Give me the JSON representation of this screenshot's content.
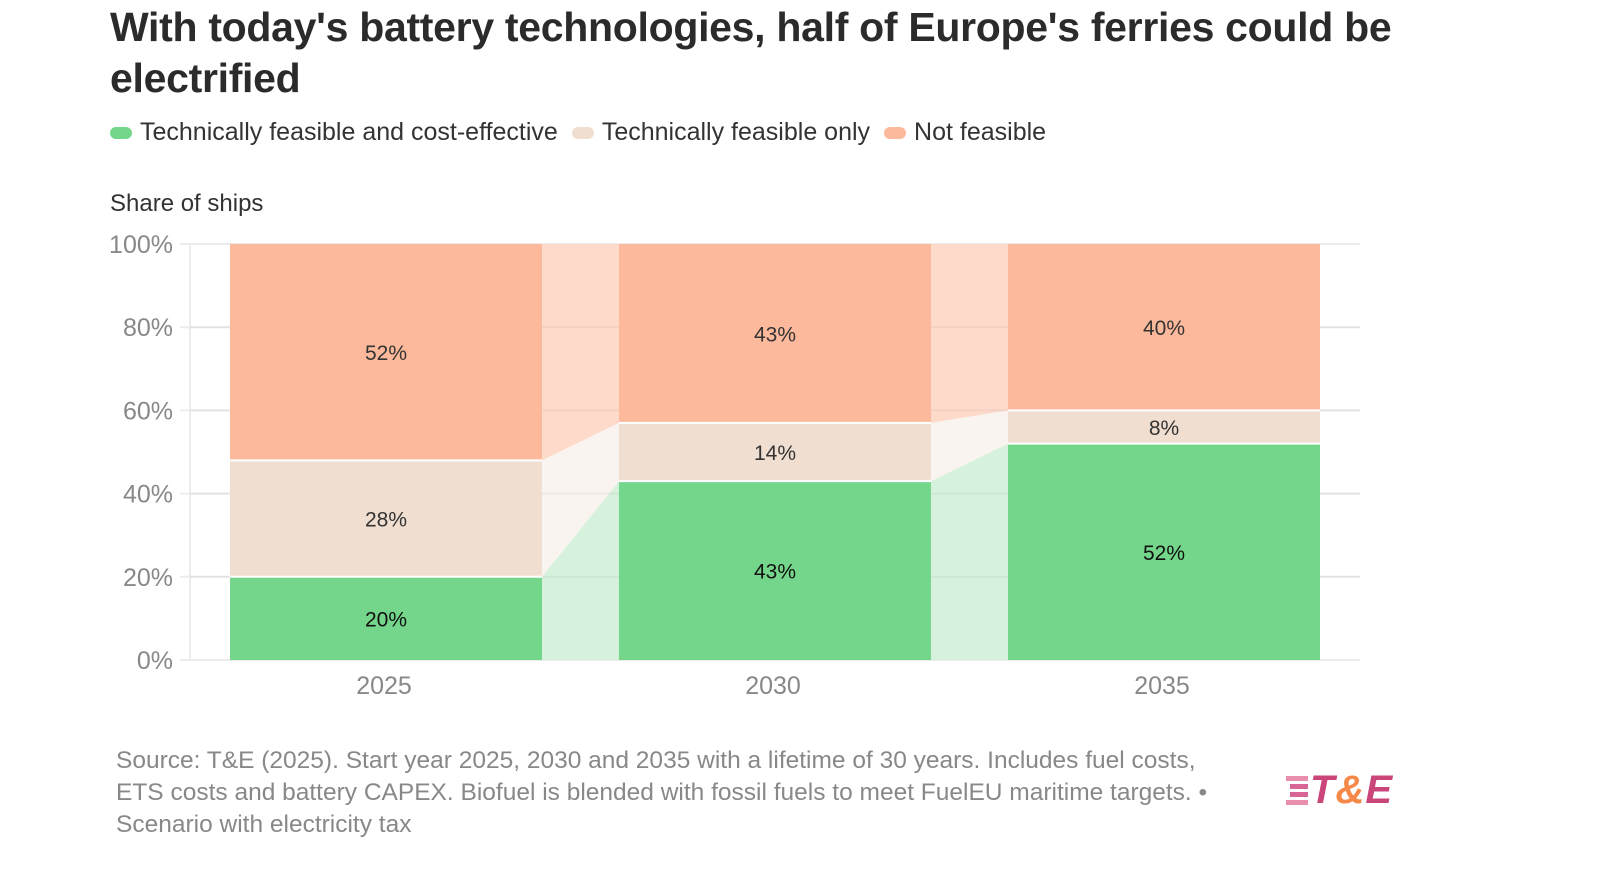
{
  "title": "With today's battery technologies, half of Europe's ferries could be electrified",
  "legend": [
    {
      "label": "Technically feasible and cost-effective",
      "color": "#74d68a"
    },
    {
      "label": "Technically feasible only",
      "color": "#f0dfd1"
    },
    {
      "label": "Not feasible",
      "color": "#fdb99b"
    }
  ],
  "source": "Source: T&E (2025). Start year 2025, 2030 and 2035 with a lifetime of 30 years. Includes fuel costs, ETS costs and battery CAPEX. Biofuel is blended with fossil fuels to meet FuelEU maritime targets. • Scenario with electricity tax",
  "logo": {
    "prefix": "T",
    "amp": "&",
    "suffix": "E"
  },
  "chart_data": {
    "type": "bar",
    "stacked": true,
    "title": "With today's battery technologies, half of Europe's ferries could be electrified",
    "xlabel": "",
    "ylabel": "Share of ships",
    "ylim": [
      0,
      100
    ],
    "yticks": [
      0,
      20,
      40,
      60,
      80,
      100
    ],
    "ytick_labels": [
      "0%",
      "20%",
      "40%",
      "60%",
      "80%",
      "100%"
    ],
    "categories": [
      "2025",
      "2030",
      "2035"
    ],
    "grid": true,
    "legend_position": "top-left",
    "series": [
      {
        "name": "Technically feasible and cost-effective",
        "color": "#74d68a",
        "connector_color": "#d6f2dc",
        "label_color": "#111111",
        "values": [
          20,
          43,
          52
        ],
        "labels": [
          "20%",
          "43%",
          "52%"
        ]
      },
      {
        "name": "Technically feasible only",
        "color": "#f0dfd1",
        "connector_color": "#faf4f0",
        "label_color": "#333333",
        "values": [
          28,
          14,
          8
        ],
        "labels": [
          "28%",
          "14%",
          "8%"
        ]
      },
      {
        "name": "Not feasible",
        "color": "#fdb99b",
        "connector_color": "#fedacb",
        "label_color": "#333333",
        "values": [
          52,
          43,
          40
        ],
        "labels": [
          "52%",
          "43%",
          "40%"
        ]
      }
    ]
  }
}
